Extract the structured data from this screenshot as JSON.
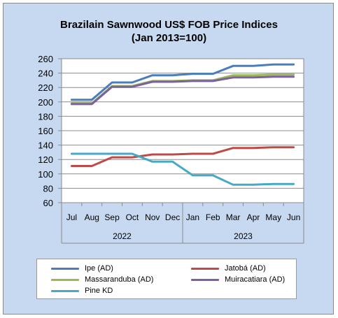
{
  "chart_data": {
    "type": "line",
    "title": "Brazilain Sawnwood US$ FOB Price Indices",
    "subtitle": "(Jan 2013=100)",
    "categories": [
      "Jul",
      "Aug",
      "Sep",
      "Oct",
      "Nov",
      "Dec",
      "Jan",
      "Feb",
      "Mar",
      "Apr",
      "May",
      "Jun"
    ],
    "year_groups": [
      {
        "label": "2022",
        "from": 0,
        "to": 5
      },
      {
        "label": "2023",
        "from": 6,
        "to": 11
      }
    ],
    "ylim": [
      60,
      260
    ],
    "yticks": [
      60,
      80,
      100,
      120,
      140,
      160,
      180,
      200,
      220,
      240,
      260
    ],
    "grid": true,
    "legend_position": "bottom",
    "series": [
      {
        "name": "Ipe (AD)",
        "color": "#4a7ebb",
        "values": [
          203,
          203,
          227,
          227,
          237,
          237,
          239,
          239,
          250,
          250,
          252,
          252
        ]
      },
      {
        "name": "Jatobá (AD)",
        "color": "#be4b48",
        "values": [
          111,
          111,
          123,
          123,
          127,
          127,
          128,
          128,
          136,
          136,
          137,
          137
        ]
      },
      {
        "name": "Massaranduba (AD)",
        "color": "#98b954",
        "values": [
          198,
          198,
          222,
          222,
          229,
          229,
          230,
          230,
          237,
          237,
          238,
          238
        ]
      },
      {
        "name": "Muiracatiara (AD)",
        "color": "#7d60a0",
        "values": [
          197,
          197,
          221,
          221,
          228,
          228,
          229,
          229,
          234,
          234,
          235,
          235
        ]
      },
      {
        "name": "Pine KD",
        "color": "#46aac5",
        "values": [
          128,
          128,
          128,
          128,
          117,
          117,
          98,
          98,
          85,
          85,
          86,
          86
        ]
      }
    ]
  }
}
